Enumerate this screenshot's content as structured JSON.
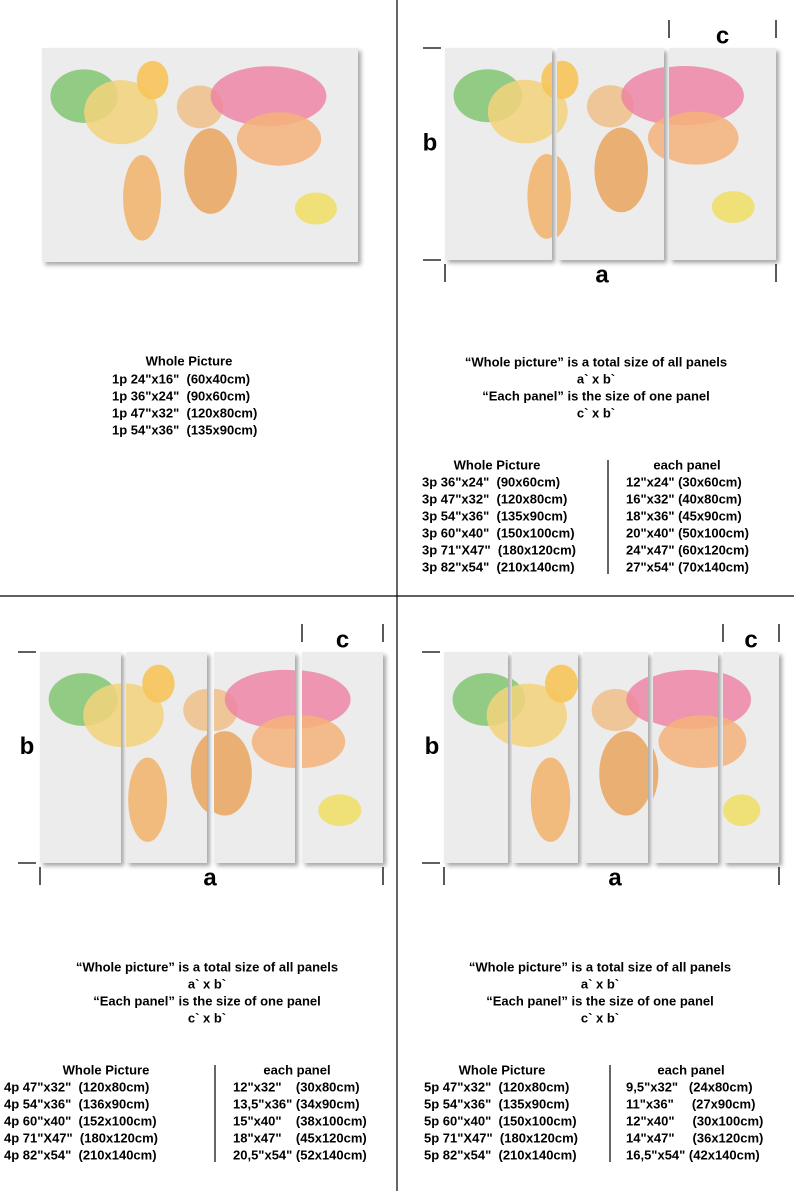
{
  "whole_picture": {
    "title": "Whole Picture",
    "sizes": [
      "1p 24\"x16\"  (60x40cm)",
      "1p 36\"x24\"  (90x60cm)",
      "1p 47\"x32\"  (120x80cm)",
      "1p 54\"x36\"  (135x90cm)"
    ]
  },
  "multi_panel": [
    {
      "labels": {
        "a": "a",
        "b": "b",
        "c": "c"
      },
      "notes": [
        "“Whole picture” is a total size of all panels",
        "a` x b`",
        "“Each panel” is the size of one panel",
        "c` x b`"
      ],
      "table": {
        "header": [
          "Whole Picture",
          "each panel"
        ],
        "rows": [
          [
            "3p 36\"x24\"  (90x60cm)",
            "12\"x24\" (30x60cm)"
          ],
          [
            "3p 47\"x32\"  (120x80cm)",
            "16\"x32\" (40x80cm)"
          ],
          [
            "3p 54\"x36\"  (135x90cm)",
            "18\"x36\" (45x90cm)"
          ],
          [
            "3p 60\"x40\"  (150x100cm)",
            "20\"x40\" (50x100cm)"
          ],
          [
            "3p 71\"X47\"  (180x120cm)",
            "24\"x47\" (60x120cm)"
          ],
          [
            "3p 82\"x54\"  (210x140cm)",
            "27\"x54\" (70x140cm)"
          ]
        ]
      }
    },
    {
      "labels": {
        "a": "a",
        "b": "b",
        "c": "c"
      },
      "notes": [
        "“Whole picture” is a total size of all panels",
        "a` x b`",
        "“Each panel” is the size of one panel",
        "c` x b`"
      ],
      "table": {
        "header": [
          "Whole Picture",
          "each panel"
        ],
        "rows": [
          [
            "4p 47\"x32\"  (120x80cm)",
            "12\"x32\"    (30x80cm)"
          ],
          [
            "4p 54\"x36\"  (136x90cm)",
            "13,5\"x36\" (34x90cm)"
          ],
          [
            "4p 60\"x40\"  (152x100cm)",
            "15\"x40\"    (38x100cm)"
          ],
          [
            "4p 71\"X47\"  (180x120cm)",
            "18\"x47\"    (45x120cm)"
          ],
          [
            "4p 82\"x54\"  (210x140cm)",
            "20,5\"x54\" (52x140cm)"
          ]
        ]
      }
    },
    {
      "labels": {
        "a": "a",
        "b": "b",
        "c": "c"
      },
      "notes": [
        "“Whole picture” is a total size of all panels",
        "a` x b`",
        "“Each panel” is the size of one panel",
        "c` x b`"
      ],
      "table": {
        "header": [
          "Whole Picture",
          "each panel"
        ],
        "rows": [
          [
            "5p 47\"x32\"  (120x80cm)",
            "9,5\"x32\"   (24x80cm)"
          ],
          [
            "5p 54\"x36\"  (135x90cm)",
            "11\"x36\"     (27x90cm)"
          ],
          [
            "5p 60\"x40\"  (150x100cm)",
            "12\"x40\"     (30x100cm)"
          ],
          [
            "5p 71\"X47\"  (180x120cm)",
            "14\"x47\"     (36x120cm)"
          ],
          [
            "5p 82\"x54\"  (210x140cm)",
            "16,5\"x54\" (42x140cm)"
          ]
        ]
      }
    }
  ]
}
